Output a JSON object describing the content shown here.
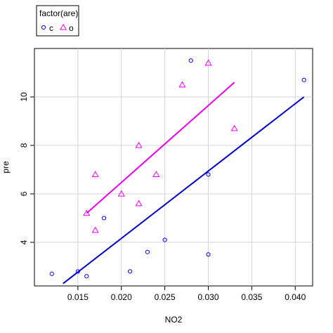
{
  "chart_data": {
    "type": "scatter",
    "title": "",
    "xlabel": "NO2",
    "ylabel": "pre",
    "xlim": [
      0.01,
      0.042
    ],
    "ylim": [
      2.2,
      12.0
    ],
    "x_ticks": [
      0.015,
      0.02,
      0.025,
      0.03,
      0.035,
      0.04
    ],
    "x_tick_labels": [
      "0.015",
      "0.020",
      "0.025",
      "0.030",
      "0.035",
      "0.040"
    ],
    "y_ticks": [
      4,
      6,
      8,
      10
    ],
    "y_tick_labels": [
      "4",
      "6",
      "8",
      "10"
    ],
    "grid": true,
    "legend": {
      "title": "factor(are)",
      "placement": "top-left-outside",
      "entries": [
        {
          "label": "c",
          "marker": "circle",
          "color": "#0000FF"
        },
        {
          "label": "o",
          "marker": "triangle",
          "color": "#FF00FF"
        }
      ]
    },
    "series": [
      {
        "name": "c",
        "marker": "circle",
        "color": "#0000FF",
        "points": [
          {
            "x": 0.012,
            "y": 2.7
          },
          {
            "x": 0.015,
            "y": 2.8
          },
          {
            "x": 0.016,
            "y": 2.6
          },
          {
            "x": 0.018,
            "y": 5.0
          },
          {
            "x": 0.021,
            "y": 2.8
          },
          {
            "x": 0.023,
            "y": 3.6
          },
          {
            "x": 0.025,
            "y": 4.1
          },
          {
            "x": 0.028,
            "y": 11.5
          },
          {
            "x": 0.03,
            "y": 6.8
          },
          {
            "x": 0.03,
            "y": 3.5
          },
          {
            "x": 0.041,
            "y": 10.7
          }
        ],
        "fit_line": {
          "x": [
            0.0133,
            0.041
          ],
          "y": [
            2.3,
            10.0
          ],
          "color": "#0000CD"
        }
      },
      {
        "name": "o",
        "marker": "triangle",
        "color": "#FF00FF",
        "points": [
          {
            "x": 0.016,
            "y": 5.2
          },
          {
            "x": 0.017,
            "y": 6.8
          },
          {
            "x": 0.017,
            "y": 4.5
          },
          {
            "x": 0.02,
            "y": 6.0
          },
          {
            "x": 0.022,
            "y": 8.0
          },
          {
            "x": 0.022,
            "y": 5.6
          },
          {
            "x": 0.024,
            "y": 6.8
          },
          {
            "x": 0.027,
            "y": 10.5
          },
          {
            "x": 0.03,
            "y": 11.4
          },
          {
            "x": 0.033,
            "y": 8.7
          }
        ],
        "fit_line": {
          "x": [
            0.016,
            0.033
          ],
          "y": [
            5.2,
            10.6
          ],
          "color": "#EE00EE"
        }
      }
    ]
  }
}
